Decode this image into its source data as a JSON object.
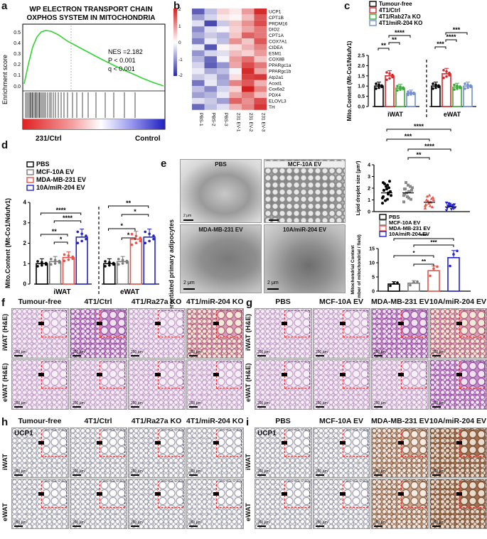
{
  "panels": {
    "a": "a",
    "b": "b",
    "c": "c",
    "d": "d",
    "e": "e",
    "f": "f",
    "g": "g",
    "h": "h",
    "i": "i"
  },
  "gsea": {
    "title_line1": "WP ELECTRON TRANSPORT CHAIN",
    "title_line2": "OXPHOS SYSTEM IN MITOCHONDRIA",
    "ylabel": "Enrichment score",
    "yticks": [
      "0.5",
      "0.4",
      "0.3",
      "0.2",
      "0.1",
      "0.0"
    ],
    "nes": "NES =2.182",
    "p": "P < 0.001",
    "q": "q < 0.001",
    "left_label": "231/Ctrl",
    "right_label": "Control"
  },
  "heatmap": {
    "genes": [
      "UCP1",
      "CPT1B",
      "PRDM16",
      "DIO2",
      "CPT1A",
      "COX7A1",
      "CIDEA",
      "ESM1",
      "COX8B",
      "PPARgc1a",
      "PPARgc1b",
      "Atp2a1",
      "Acod1",
      "Cox6a2",
      "PDX4",
      "ELOVL3",
      "TH"
    ],
    "samples": [
      "PBS-1",
      "PBS-2",
      "PBS-3",
      "231 EV-1",
      "231 EV-2",
      "231 EV-3"
    ],
    "scale_ticks": [
      "2",
      "1",
      "0",
      "-1",
      "-2"
    ],
    "values": [
      [
        -1.5,
        -0.6,
        0.4,
        0.2,
        0.9,
        1.9
      ],
      [
        -0.9,
        -0.4,
        0.2,
        0.1,
        0.6,
        1.5
      ],
      [
        -0.3,
        -1.7,
        -0.5,
        0.5,
        1.0,
        1.6
      ],
      [
        -1.1,
        -0.3,
        -0.1,
        0.4,
        0.8,
        1.2
      ],
      [
        -0.8,
        -0.5,
        -0.7,
        0.5,
        1.4,
        1.2
      ],
      [
        -1.2,
        -0.2,
        -0.6,
        1.0,
        0.5,
        1.5
      ],
      [
        -0.2,
        -1.6,
        0.1,
        0.3,
        0.7,
        1.1
      ],
      [
        -1.0,
        -0.4,
        -0.3,
        0.6,
        0.4,
        0.9
      ],
      [
        -0.7,
        -1.4,
        -0.1,
        0.9,
        1.3,
        0.5
      ],
      [
        -0.4,
        -1.5,
        -1.0,
        0.8,
        1.6,
        1.2
      ],
      [
        -0.2,
        -0.8,
        -0.6,
        -0.1,
        1.9,
        0.8
      ],
      [
        -0.5,
        -0.3,
        -0.9,
        0.3,
        1.7,
        1.8
      ],
      [
        -1.3,
        -0.2,
        -0.8,
        1.1,
        1.5,
        0.7
      ],
      [
        -0.6,
        -1.1,
        -0.4,
        0.4,
        2.0,
        1.1
      ],
      [
        -0.9,
        -0.7,
        -0.2,
        0.8,
        1.2,
        0.6
      ],
      [
        -0.3,
        -0.5,
        -0.9,
        1.4,
        1.0,
        1.6
      ],
      [
        -1.4,
        -0.6,
        -0.3,
        0.7,
        1.1,
        1.8
      ]
    ]
  },
  "panel_c": {
    "type": "bar",
    "legend": [
      "Tumour-free",
      "4T1/Ctrl",
      "4T1/Rab27a KO",
      "4T1/miR-204 KO"
    ],
    "colors": [
      "#000000",
      "#d8282e",
      "#3aa935",
      "#6f8fd0"
    ],
    "ylabel": "Mito.Content (Mt-Co1/Ndufv1)",
    "ylim": [
      0,
      2.5
    ],
    "yticks": [
      "0.0",
      "0.5",
      "1.0",
      "1.5",
      "2.0",
      "2.5"
    ],
    "groups": [
      "iWAT",
      "eWAT"
    ],
    "values": [
      [
        1.0,
        1.5,
        0.9,
        0.65
      ],
      [
        1.0,
        1.6,
        0.95,
        1.0
      ]
    ],
    "sig": [
      "**",
      "**",
      "****",
      "***",
      "****",
      "***"
    ]
  },
  "panel_d": {
    "type": "bar",
    "legend": [
      "PBS",
      "MCF-10A EV",
      "MDA-MB-231 EV",
      "10A/miR-204 EV"
    ],
    "colors": [
      "#000000",
      "#7a7a7a",
      "#e8544a",
      "#2323c8"
    ],
    "ylabel": "Mito.Content (Mt-Co1/Ndufv1)",
    "ylim": [
      0,
      4
    ],
    "yticks": [
      "0",
      "1",
      "2",
      "3",
      "4"
    ],
    "groups": [
      "iWAT",
      "eWAT"
    ],
    "values": [
      [
        1.0,
        1.1,
        1.3,
        2.3
      ],
      [
        1.0,
        1.1,
        2.2,
        2.3
      ]
    ],
    "sig": [
      "****",
      "****",
      "**",
      "*",
      "**",
      "*",
      "*",
      "*"
    ]
  },
  "panel_e": {
    "tem_labels": [
      "PBS",
      "MCF-10A EV",
      "MDA-MB-231 EV",
      "10A/miR-204 EV"
    ],
    "side_label": "Differentiated primary adipocytes",
    "scale": "2 μm",
    "lipid": {
      "type": "scatter",
      "ylabel": "Lipid droplet size (μm²)",
      "ylim": [
        0,
        4
      ],
      "yticks": [
        "0",
        "1",
        "2",
        "3",
        "4"
      ],
      "means": [
        1.6,
        1.6,
        0.8,
        0.4
      ],
      "sig": [
        "****",
        "***",
        "****",
        "**"
      ]
    },
    "legend": [
      "PBS",
      "MCF-10A EV",
      "MDA-MB-231 EV",
      "10A/miR-204 EV"
    ],
    "colors": [
      "#000000",
      "#7a7a7a",
      "#e8544a",
      "#2323c8"
    ],
    "mito": {
      "type": "bar",
      "ylabel_line1": "Mitochondrial Content",
      "ylabel_line2": "(number of mitochondrial / field)",
      "ylim": [
        0,
        15
      ],
      "yticks": [
        "0",
        "5",
        "10",
        "15"
      ],
      "values": [
        2.5,
        2.8,
        7.2,
        11.8
      ],
      "sig": [
        "***",
        "***",
        "*",
        "**"
      ]
    }
  },
  "panel_f": {
    "cols": [
      "Tumour-free",
      "4T1/Ctrl",
      "4T1/Ra27a KO",
      "4T1/miR-204 KO"
    ],
    "rows": [
      "iWAT (H&E)",
      "eWAT (H&E)"
    ],
    "scale": "200 μm"
  },
  "panel_g": {
    "cols": [
      "PBS",
      "MCF-10A EV",
      "MDA-MB-231 EV",
      "10A/miR-204 EV"
    ],
    "rows": [
      "iWAT (H&E)",
      "eWAT (H&E)"
    ],
    "scale": "200 μm"
  },
  "panel_h": {
    "cols": [
      "Tumour-free",
      "4T1/Ctrl",
      "4T1/Ra27a KO",
      "4T1/miR-204 KO"
    ],
    "rows": [
      "iWAT",
      "eWAT"
    ],
    "stain": "UCP1",
    "scale": "200 μm"
  },
  "panel_i": {
    "cols": [
      "PBS",
      "MCF-10A EV",
      "MDA-MB-231 EV",
      "10A/miR-204 EV"
    ],
    "rows": [
      "iWAT",
      "eWAT"
    ],
    "stain": "UCP1",
    "scale": "200 μm"
  }
}
